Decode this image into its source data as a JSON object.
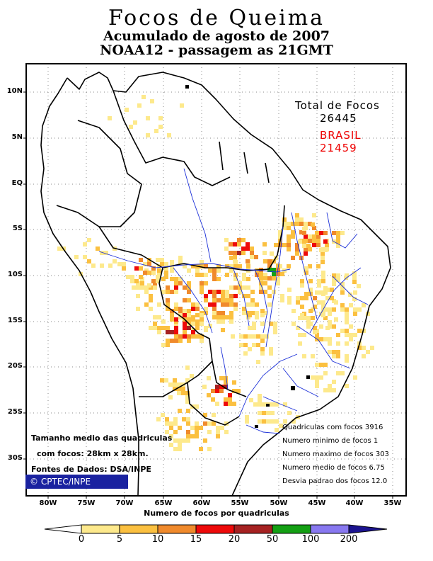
{
  "title": {
    "line1": "Focos de Queima",
    "line2": "Acumulado de agosto de 2007",
    "line3": "NOAA12 - passagem as 21GMT"
  },
  "totals": {
    "label": "Total de Focos",
    "total": "26445",
    "brasil_label": "BRASIL",
    "brasil_total": "21459"
  },
  "stats": [
    "Quadriculas com focos 3916",
    "Numero minimo de focos 1",
    "Numero maximo de focos 303",
    "Numero medio de focos 6.75",
    "Desvia padrao dos focos 12.0"
  ],
  "notes": {
    "size_line1": "Tamanho medio das quadriculas",
    "size_line2": "com focos: 28km x 28km.",
    "source": "Fontes de Dados: DSA/INPE",
    "logo": "© CPTEC/INPE"
  },
  "axes": {
    "lat_labels": [
      "10N",
      "5N",
      "EQ",
      "5S",
      "10S",
      "15S",
      "20S",
      "25S",
      "30S"
    ],
    "lon_labels": [
      "80W",
      "75W",
      "70W",
      "65W",
      "60W",
      "55W",
      "50W",
      "45W",
      "40W",
      "35W"
    ]
  },
  "legend": {
    "title": "Numero de focos por quadriculas",
    "labels": [
      "0",
      "5",
      "10",
      "15",
      "20",
      "50",
      "100",
      "200"
    ],
    "colors": [
      "#ffffff",
      "#fde98c",
      "#fbc040",
      "#f08a2c",
      "#ee0a0a",
      "#a62222",
      "#14a014",
      "#8878f0",
      "#1c1490"
    ]
  },
  "colors": {
    "total_text": "#000000",
    "brasil_text": "#ee0000",
    "rivers": "#1c30d8",
    "badge": "#1a22a0"
  }
}
